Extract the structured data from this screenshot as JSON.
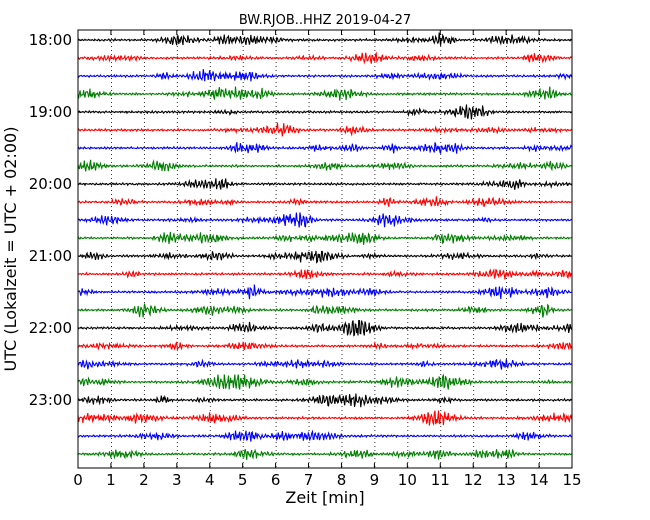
{
  "chart_data": {
    "type": "line",
    "title": "BW.RJOB..HHZ 2019-04-27",
    "xlabel": "Zeit  [min]",
    "ylabel": "UTC (Lokalzeit = UTC + 02:00)",
    "xlim": [
      0,
      15
    ],
    "x_ticks": [
      0,
      1,
      2,
      3,
      4,
      5,
      6,
      7,
      8,
      9,
      10,
      11,
      12,
      13,
      14,
      15
    ],
    "y_tick_labels": [
      "18:00",
      "19:00",
      "20:00",
      "21:00",
      "22:00",
      "23:00"
    ],
    "trace_interval_minutes": 15,
    "first_trace_start": "18:00",
    "trace_count": 24,
    "trace_colors": [
      "#000000",
      "#ff0000",
      "#0000ff",
      "#007f00"
    ],
    "grid": "vertical dotted at each minute"
  }
}
